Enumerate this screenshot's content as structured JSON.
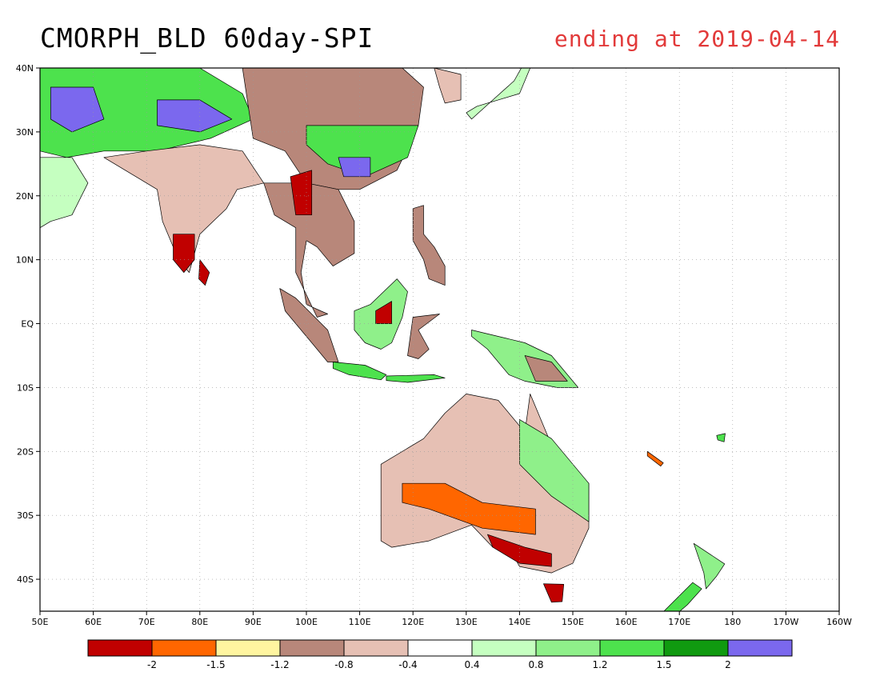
{
  "map": {
    "title": "CMORPH_BLD 60day-SPI",
    "subtitle": "ending at 2019-04-14",
    "subtitle_color": "#e23a3a",
    "lon_range": [
      50,
      200
    ],
    "lat_range": [
      -45,
      40
    ],
    "lon_ticks": [
      "50E",
      "60E",
      "70E",
      "80E",
      "90E",
      "100E",
      "110E",
      "120E",
      "130E",
      "140E",
      "150E",
      "160E",
      "170E",
      "180",
      "170W",
      "160W"
    ],
    "lat_ticks": [
      {
        "lat": 40,
        "label": "40N"
      },
      {
        "lat": 30,
        "label": "30N"
      },
      {
        "lat": 20,
        "label": "20N"
      },
      {
        "lat": 10,
        "label": "10N"
      },
      {
        "lat": 0,
        "label": "EQ"
      },
      {
        "lat": -10,
        "label": "10S"
      },
      {
        "lat": -20,
        "label": "20S"
      },
      {
        "lat": -30,
        "label": "30S"
      },
      {
        "lat": -40,
        "label": "40S"
      }
    ],
    "grid": "dotted",
    "colorbar": {
      "colors": [
        "#c00000",
        "#ff6600",
        "#fff5a0",
        "#b8877a",
        "#e6c0b4",
        "#ffffff",
        "#c5ffc0",
        "#8ff08a",
        "#4de24d",
        "#109a10",
        "#7b68ee"
      ],
      "labels": [
        "-2",
        "-1.5",
        "-1.2",
        "-0.8",
        "-0.4",
        "0.4",
        "0.8",
        "1.2",
        "1.5",
        "2"
      ]
    }
  }
}
